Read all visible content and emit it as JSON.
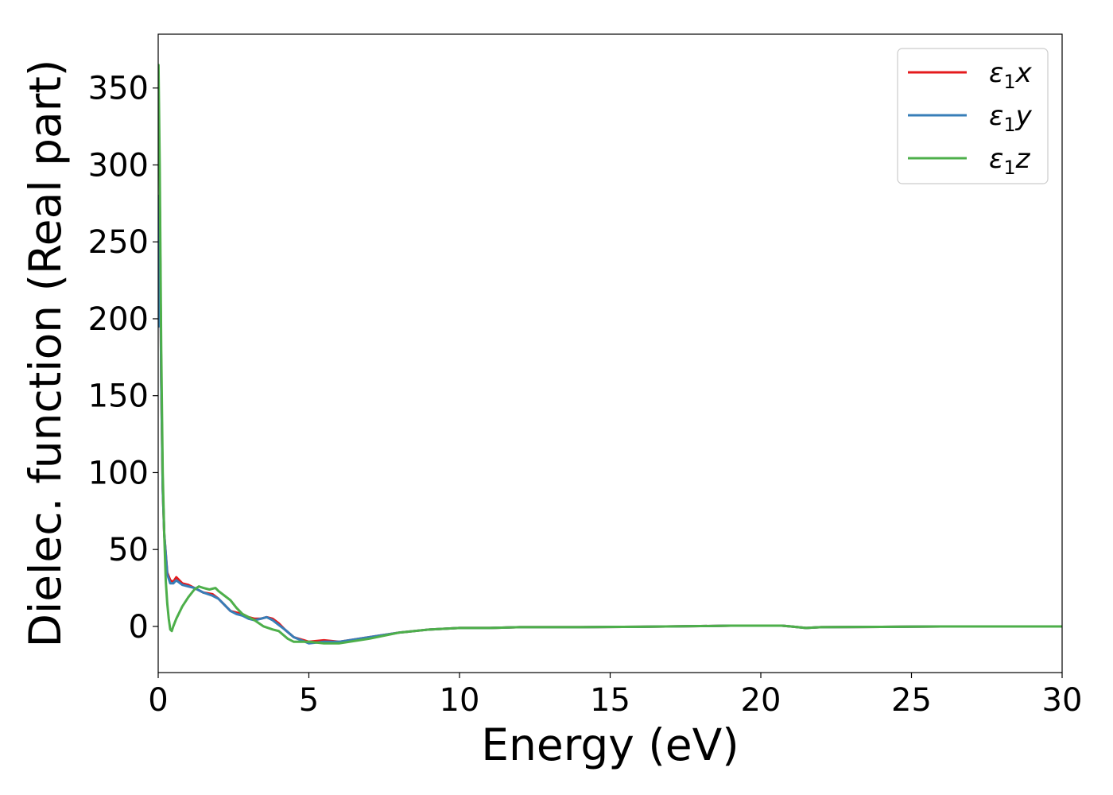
{
  "chart_data": {
    "type": "line",
    "title": "",
    "xlabel": "Energy (eV)",
    "ylabel": "Dielec. function (Real part)",
    "xlim": [
      0,
      30
    ],
    "ylim": [
      -30,
      385
    ],
    "xticks": [
      0,
      5,
      10,
      15,
      20,
      25,
      30
    ],
    "yticks": [
      0,
      50,
      100,
      150,
      200,
      250,
      300,
      350
    ],
    "grid": false,
    "legend_position": "top-right",
    "series": [
      {
        "name": "ε₁x",
        "legend_main": "ε",
        "legend_sub": "1",
        "legend_var": "x",
        "color": "#e41a1c",
        "x": [
          0.01,
          0.05,
          0.1,
          0.15,
          0.2,
          0.3,
          0.4,
          0.5,
          0.6,
          0.8,
          1.0,
          1.2,
          1.5,
          1.8,
          2.0,
          2.2,
          2.4,
          2.6,
          2.8,
          3.0,
          3.2,
          3.4,
          3.6,
          3.8,
          4.0,
          4.2,
          4.5,
          5.0,
          5.5,
          6.0,
          7.0,
          8.0,
          9.0,
          10.0,
          11.0,
          12.0,
          14.0,
          16.0,
          18.0,
          19.0,
          20.0,
          20.7,
          21.0,
          21.5,
          22.0,
          24.0,
          26.0,
          28.0,
          30.0
        ],
        "y": [
          195,
          280,
          160,
          90,
          60,
          35,
          30,
          29,
          32,
          28,
          27,
          25,
          22,
          21,
          18,
          14,
          10,
          9,
          8,
          6,
          5,
          5,
          6,
          5,
          2,
          -2,
          -7,
          -10,
          -9,
          -10,
          -7,
          -4,
          -2,
          -1,
          -1,
          -0.5,
          -0.5,
          -0.2,
          0.2,
          0.5,
          0.5,
          0.5,
          0,
          -1,
          -0.5,
          -0.3,
          0,
          0,
          0
        ]
      },
      {
        "name": "ε₁y",
        "legend_main": "ε",
        "legend_sub": "1",
        "legend_var": "y",
        "color": "#377eb8",
        "x": [
          0.01,
          0.05,
          0.1,
          0.15,
          0.2,
          0.3,
          0.4,
          0.5,
          0.6,
          0.8,
          1.0,
          1.2,
          1.5,
          1.8,
          2.0,
          2.2,
          2.4,
          2.6,
          2.8,
          3.0,
          3.2,
          3.4,
          3.6,
          3.8,
          4.0,
          4.2,
          4.5,
          5.0,
          5.5,
          6.0,
          7.0,
          8.0,
          9.0,
          10.0,
          11.0,
          12.0,
          14.0,
          16.0,
          18.0,
          19.0,
          20.0,
          20.7,
          21.0,
          21.5,
          22.0,
          24.0,
          26.0,
          28.0,
          30.0
        ],
        "y": [
          195,
          280,
          160,
          90,
          60,
          34,
          28,
          28,
          30,
          27,
          26,
          25,
          22,
          20,
          18,
          14,
          10,
          8,
          7,
          5,
          4,
          5,
          6,
          4,
          1,
          -2,
          -7,
          -11,
          -10,
          -10,
          -7,
          -4,
          -2,
          -1,
          -1,
          -0.5,
          -0.5,
          -0.2,
          0.2,
          0.5,
          0.5,
          0.5,
          0,
          -1,
          -0.5,
          -0.3,
          0,
          0,
          0
        ]
      },
      {
        "name": "ε₁z",
        "legend_main": "ε",
        "legend_sub": "1",
        "legend_var": "z",
        "color": "#4daf4a",
        "x": [
          0.01,
          0.05,
          0.1,
          0.15,
          0.2,
          0.25,
          0.3,
          0.35,
          0.4,
          0.45,
          0.5,
          0.6,
          0.7,
          0.8,
          1.0,
          1.2,
          1.35,
          1.5,
          1.7,
          1.9,
          2.0,
          2.2,
          2.4,
          2.6,
          2.8,
          3.0,
          3.2,
          3.5,
          3.8,
          4.0,
          4.3,
          4.5,
          5.0,
          5.5,
          6.0,
          7.0,
          8.0,
          9.0,
          10.0,
          11.0,
          12.0,
          14.0,
          16.0,
          18.0,
          19.0,
          20.0,
          20.7,
          21.0,
          21.5,
          22.0,
          24.0,
          26.0,
          28.0,
          30.0
        ],
        "y": [
          365,
          300,
          180,
          100,
          60,
          30,
          15,
          5,
          -2,
          -3,
          0,
          5,
          9,
          13,
          19,
          24,
          26,
          25,
          24,
          25,
          23,
          20,
          17,
          12,
          8,
          6,
          4,
          0,
          -2,
          -3,
          -8,
          -10,
          -10,
          -11,
          -11,
          -8,
          -4,
          -2,
          -1,
          -1,
          -0.5,
          -0.5,
          -0.2,
          0.2,
          0.5,
          0.5,
          0.5,
          0,
          -1,
          -0.5,
          -0.3,
          0,
          0,
          0
        ]
      }
    ]
  }
}
